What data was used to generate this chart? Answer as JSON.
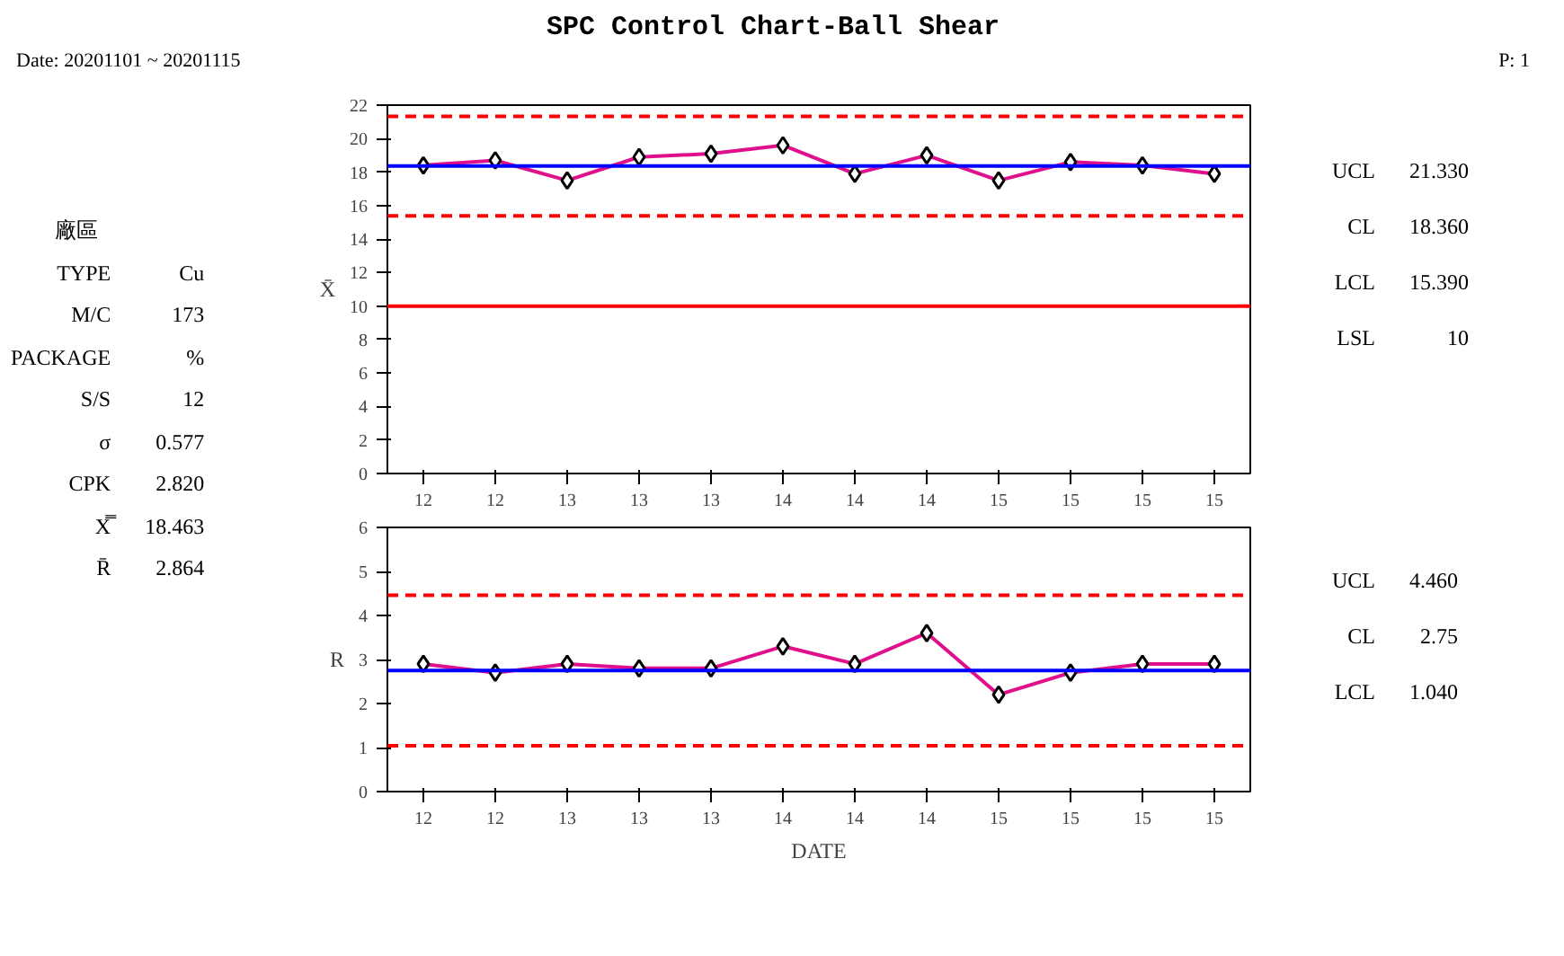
{
  "chart_data": [
    {
      "type": "other",
      "title": "SPC Control Chart-Ball Shear",
      "annotations": [
        "Date:  20201101  ~  20201115",
        "P: 1",
        "廠區",
        "TYPE",
        "Cu",
        "M/C",
        "173",
        "PACKAGE",
        "%",
        "S/S",
        "12",
        "σ",
        "0.577",
        "CPK",
        "2.820",
        "X̿",
        "18.463",
        "R̄",
        "2.864"
      ]
    },
    {
      "type": "line",
      "ylabel": "X̄",
      "categories": [
        "12",
        "12",
        "13",
        "13",
        "13",
        "14",
        "14",
        "14",
        "15",
        "15",
        "15",
        "15"
      ],
      "series": [
        {
          "color": "#e0108c",
          "values": [
            18.4,
            18.7,
            17.5,
            18.9,
            19.1,
            19.6,
            17.9,
            19.0,
            17.5,
            18.6,
            18.4,
            17.9
          ]
        }
      ],
      "ylim": [
        0,
        22
      ],
      "yticks": [
        0,
        2,
        4,
        6,
        8,
        10,
        12,
        14,
        16,
        18,
        20,
        22
      ],
      "marker": "diamond",
      "line_style": "solid",
      "grid": false,
      "ref_lines": [
        {
          "axis": "y",
          "value": 21.33,
          "color": "#ff0000",
          "line_style": "dashed"
        },
        {
          "axis": "y",
          "value": 18.36,
          "color": "#0000ff",
          "line_style": "solid"
        },
        {
          "axis": "y",
          "value": 15.39,
          "color": "#ff0000",
          "line_style": "dashed"
        },
        {
          "axis": "y",
          "value": 10,
          "color": "#ff0000",
          "line_style": "solid"
        }
      ],
      "annotations": [
        "UCL",
        "21.330",
        "CL",
        "18.360",
        "LCL",
        "15.390",
        "LSL",
        "10"
      ]
    },
    {
      "type": "line",
      "ylabel": "R",
      "xlabel": "DATE",
      "categories": [
        "12",
        "12",
        "13",
        "13",
        "13",
        "14",
        "14",
        "14",
        "15",
        "15",
        "15",
        "15"
      ],
      "series": [
        {
          "color": "#e0108c",
          "values": [
            2.9,
            2.7,
            2.9,
            2.8,
            2.8,
            3.3,
            2.9,
            3.6,
            2.2,
            2.7,
            2.9,
            2.9
          ]
        }
      ],
      "ylim": [
        0,
        6
      ],
      "yticks": [
        0,
        1,
        2,
        3,
        4,
        5,
        6
      ],
      "marker": "diamond",
      "line_style": "solid",
      "grid": false,
      "ref_lines": [
        {
          "axis": "y",
          "value": 4.46,
          "color": "#ff0000",
          "line_style": "dashed"
        },
        {
          "axis": "y",
          "value": 2.75,
          "color": "#0000ff",
          "line_style": "solid"
        },
        {
          "axis": "y",
          "value": 1.04,
          "color": "#ff0000",
          "line_style": "dashed"
        }
      ],
      "annotations": [
        "UCL",
        "4.460",
        "CL",
        "2.75",
        "LCL",
        "1.040"
      ]
    }
  ]
}
